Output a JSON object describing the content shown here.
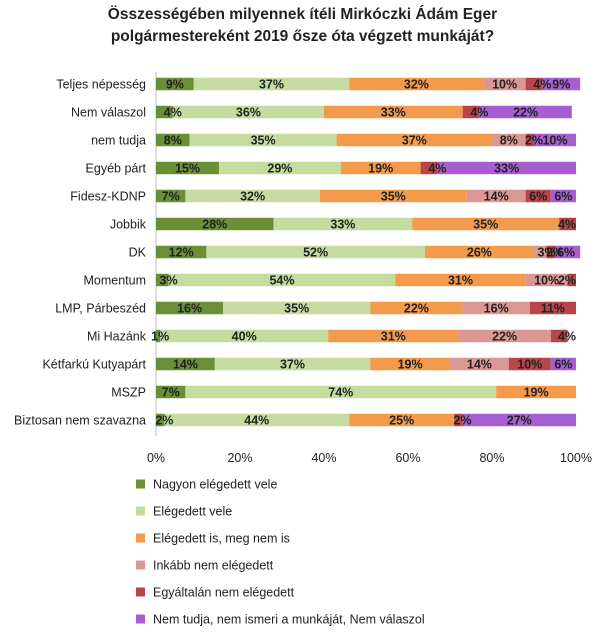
{
  "chart_data": {
    "type": "bar",
    "orientation": "horizontal",
    "stacked": true,
    "title_lines": [
      "Összességében milyennek ítéli Mirkóczki Ádám Eger",
      "polgármestereként 2019 ősze óta végzett munkáját?"
    ],
    "categories": [
      "Teljes népesség",
      "Nem válaszol",
      "nem tudja",
      "Egyéb párt",
      "Fidesz-KDNP",
      "Jobbik",
      "DK",
      "Momentum",
      "LMP, Párbeszéd",
      "Mi Hazánk",
      "Kétfarkú Kutyapárt",
      "MSZP",
      "Biztosan nem szavazna"
    ],
    "series": [
      {
        "name": "Nagyon elégedett vele",
        "color": "#6a8f36",
        "values": [
          9,
          4,
          8,
          15,
          7,
          28,
          12,
          3,
          16,
          1,
          14,
          7,
          2
        ]
      },
      {
        "name": "Elégedett vele",
        "color": "#c5dca0",
        "values": [
          37,
          36,
          35,
          29,
          32,
          33,
          52,
          54,
          35,
          40,
          37,
          74,
          44
        ]
      },
      {
        "name": "Elégedett is, meg nem is",
        "color": "#f39a4c",
        "values": [
          32,
          33,
          37,
          19,
          35,
          35,
          26,
          31,
          22,
          31,
          19,
          19,
          25
        ]
      },
      {
        "name": "Inkább nem elégedett",
        "color": "#d99894",
        "values": [
          10,
          0,
          8,
          0,
          14,
          0,
          3,
          10,
          16,
          22,
          14,
          0,
          0
        ]
      },
      {
        "name": "Egyáltalán nem elégedett",
        "color": "#b8454a",
        "values": [
          4,
          4,
          2,
          4,
          6,
          4,
          2,
          2,
          11,
          4,
          10,
          0,
          2
        ]
      },
      {
        "name": "Nem tudja, nem ismeri a munkáját, Nem válaszol",
        "color": "#a55fd0",
        "values": [
          9,
          22,
          10,
          33,
          6,
          0,
          6,
          0,
          0,
          0,
          6,
          0,
          27
        ]
      }
    ],
    "labels": [
      [
        "9%",
        "37%",
        "32%",
        "10%",
        "4%",
        "9%"
      ],
      [
        "4%",
        "36%",
        "33%",
        "",
        "4%",
        "22%"
      ],
      [
        "8%",
        "35%",
        "37%",
        "8%",
        "2%",
        "10%"
      ],
      [
        "15%",
        "29%",
        "19%",
        "",
        "4%",
        "33%"
      ],
      [
        "7%",
        "32%",
        "35%",
        "14%",
        "6%",
        "6%"
      ],
      [
        "28%",
        "33%",
        "35%",
        "",
        "4%",
        ""
      ],
      [
        "12%",
        "52%",
        "26%",
        "3%",
        "2%",
        "6%"
      ],
      [
        "3%",
        "54%",
        "31%",
        "10%",
        "2%",
        ""
      ],
      [
        "16%",
        "35%",
        "22%",
        "16%",
        "11%",
        ""
      ],
      [
        "1%",
        "40%",
        "31%",
        "22%",
        "4%",
        ""
      ],
      [
        "14%",
        "37%",
        "19%",
        "14%",
        "10%",
        "6%"
      ],
      [
        "7%",
        "74%",
        "19%",
        "",
        "",
        ""
      ],
      [
        "2%",
        "44%",
        "25%",
        "",
        "2%",
        "27%"
      ]
    ],
    "x_ticks": [
      "0%",
      "20%",
      "40%",
      "60%",
      "80%",
      "100%"
    ],
    "xlim": [
      0,
      100
    ],
    "xlabel": "",
    "ylabel": "",
    "grid": false,
    "legend_position": "bottom-left"
  }
}
